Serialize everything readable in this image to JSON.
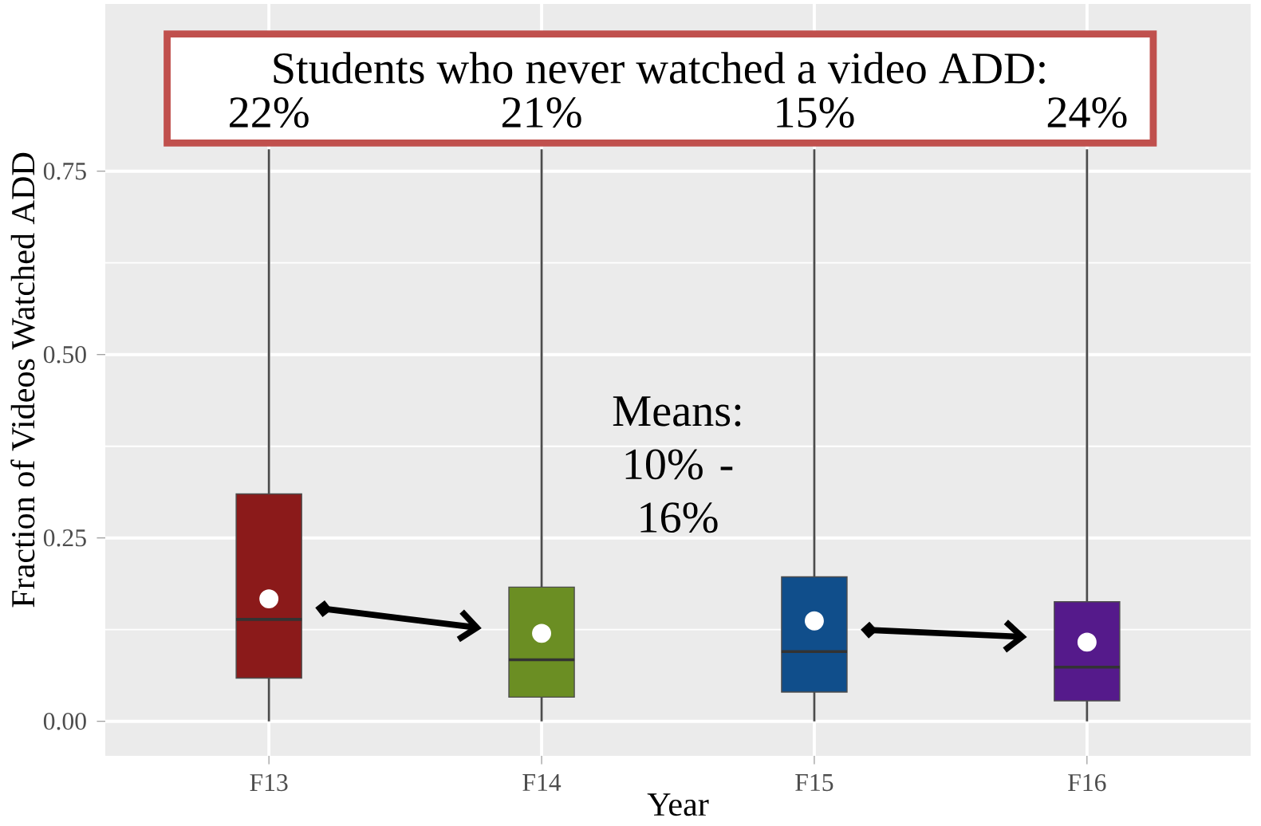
{
  "chart_data": {
    "type": "box",
    "xlabel": "Year",
    "ylabel": "Fraction of Videos Watched ADD",
    "categories": [
      "F13",
      "F14",
      "F15",
      "F16"
    ],
    "colors": [
      "#8b1a1a",
      "#6b8e23",
      "#104e8b",
      "#551a8b"
    ],
    "boxes": [
      {
        "low": 0,
        "q1": 0.059,
        "median": 0.139,
        "q3": 0.31,
        "high": 0.78,
        "mean": 0.167
      },
      {
        "low": 0,
        "q1": 0.033,
        "median": 0.084,
        "q3": 0.183,
        "high": 0.78,
        "mean": 0.12
      },
      {
        "low": 0,
        "q1": 0.04,
        "median": 0.095,
        "q3": 0.197,
        "high": 0.78,
        "mean": 0.137
      },
      {
        "low": 0,
        "q1": 0.028,
        "median": 0.074,
        "q3": 0.163,
        "high": 0.78,
        "mean": 0.108
      }
    ],
    "ylim": [
      -0.047,
      0.978
    ],
    "yticks": [
      {
        "value": 0,
        "label": "0.00"
      },
      {
        "value": 0.25,
        "label": "0.25"
      },
      {
        "value": 0.5,
        "label": "0.50"
      },
      {
        "value": 0.75,
        "label": "0.75"
      }
    ],
    "grid": true,
    "annotations": [
      "Students who never watched a video ADD:",
      "22%",
      "21%",
      "15%",
      "24%",
      "Means: 10% - 16%"
    ]
  }
}
